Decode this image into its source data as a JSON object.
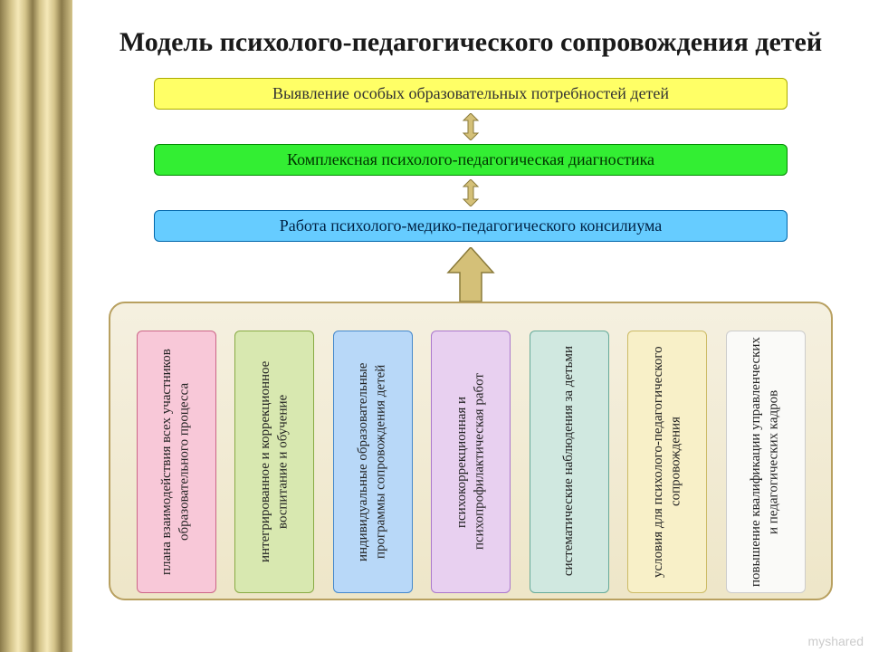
{
  "title": "Модель психолого-педагогического сопровождения детей",
  "bars": {
    "yellow": {
      "label": "Выявление особых образовательных потребностей детей",
      "bg": "#ffff66",
      "border": "#aaaa00"
    },
    "green": {
      "label": "Комплексная психолого-педагогическая диагностика",
      "bg": "#33ee33",
      "border": "#008800"
    },
    "blue": {
      "label": "Работа психолого-медико-педагогического консилиума",
      "bg": "#66ccff",
      "border": "#0066aa"
    }
  },
  "arrow": {
    "small_fill": "#d4c078",
    "small_stroke": "#8a7a3a",
    "big_fill": "#d4c078",
    "big_stroke": "#8a7a3a"
  },
  "panel": {
    "bg_top": "#f5f0e0",
    "bg_bottom": "#eee6c8",
    "border": "#b8a060"
  },
  "columns": [
    {
      "label": "плана взаимодействия всех участников образовательного процесса",
      "bg": "#f8c8d8",
      "border": "#cc6688"
    },
    {
      "label": "интегрированное и коррекционное воспитание и обучение",
      "bg": "#d8e8b0",
      "border": "#88aa44"
    },
    {
      "label": "индивидуальные образовательные программы сопровождения детей",
      "bg": "#b8d8f8",
      "border": "#4488cc"
    },
    {
      "label": "психокоррекционная и психопрофилактическая работ",
      "bg": "#e8d0f0",
      "border": "#aa77cc"
    },
    {
      "label": "систематические наблюдения за детьми",
      "bg": "#d0e8e0",
      "border": "#66aa99"
    },
    {
      "label": "условия для психолого-педагогического сопровождения",
      "bg": "#f8f0c8",
      "border": "#ccbb66"
    },
    {
      "label": "повышение квалификации управленческих и педагогических кадров",
      "bg": "#fafaf8",
      "border": "#cccccc"
    }
  ],
  "watermark": "myshared"
}
